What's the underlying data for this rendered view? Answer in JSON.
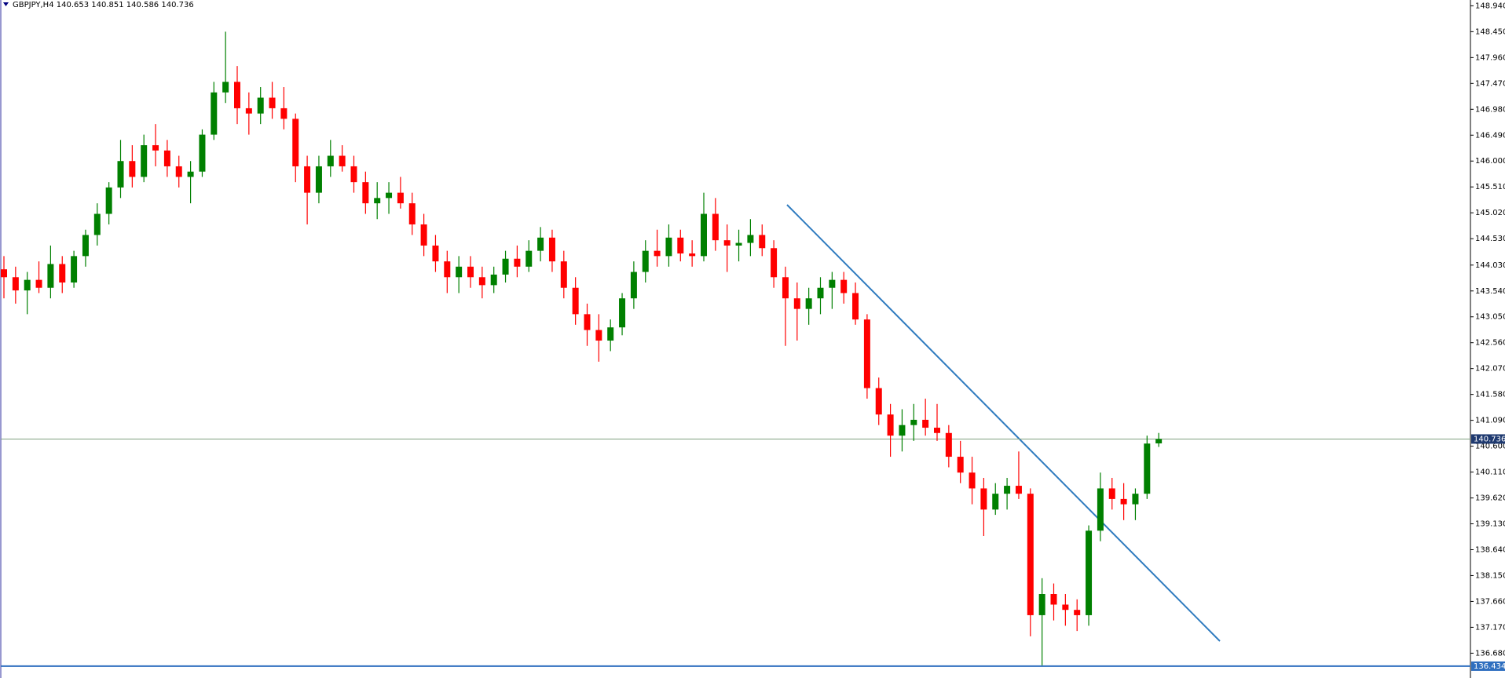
{
  "chart_data": {
    "type": "candlestick",
    "title": "GBPJPY,H4  140.653 140.851 140.586 140.736",
    "up_color": "#008000",
    "down_color": "#ff0000",
    "ylim": [
      136.21,
      149.05
    ],
    "yticks": [
      {
        "value": 148.94,
        "label": "148.940"
      },
      {
        "value": 148.45,
        "label": "148.450"
      },
      {
        "value": 147.96,
        "label": "147.960"
      },
      {
        "value": 147.47,
        "label": "147.470"
      },
      {
        "value": 146.98,
        "label": "146.980"
      },
      {
        "value": 146.49,
        "label": "146.490"
      },
      {
        "value": 146.0,
        "label": "146.000"
      },
      {
        "value": 145.51,
        "label": "145.510"
      },
      {
        "value": 145.02,
        "label": "145.020"
      },
      {
        "value": 144.53,
        "label": "144.530"
      },
      {
        "value": 144.03,
        "label": "144.030"
      },
      {
        "value": 143.54,
        "label": "143.540"
      },
      {
        "value": 143.05,
        "label": "143.050"
      },
      {
        "value": 142.56,
        "label": "142.560"
      },
      {
        "value": 142.07,
        "label": "142.070"
      },
      {
        "value": 141.58,
        "label": "141.580"
      },
      {
        "value": 141.09,
        "label": "141.090"
      },
      {
        "value": 140.6,
        "label": "140.600"
      },
      {
        "value": 140.11,
        "label": "140.110"
      },
      {
        "value": 139.62,
        "label": "139.620"
      },
      {
        "value": 139.13,
        "label": "139.130"
      },
      {
        "value": 138.64,
        "label": "138.640"
      },
      {
        "value": 138.15,
        "label": "138.150"
      },
      {
        "value": 137.66,
        "label": "137.660"
      },
      {
        "value": 137.17,
        "label": "137.170"
      },
      {
        "value": 136.68,
        "label": "136.680"
      }
    ],
    "price_line": 140.736,
    "level_line": 136.434,
    "candles": [
      [
        143.95,
        144.2,
        143.4,
        143.8
      ],
      [
        143.8,
        144.0,
        143.3,
        143.55
      ],
      [
        143.55,
        143.9,
        143.1,
        143.75
      ],
      [
        143.75,
        144.1,
        143.5,
        143.6
      ],
      [
        143.6,
        144.4,
        143.4,
        144.05
      ],
      [
        144.05,
        144.2,
        143.5,
        143.7
      ],
      [
        143.7,
        144.3,
        143.6,
        144.2
      ],
      [
        144.2,
        144.7,
        144.0,
        144.6
      ],
      [
        144.6,
        145.2,
        144.4,
        145.0
      ],
      [
        145.0,
        145.6,
        144.8,
        145.5
      ],
      [
        145.5,
        146.4,
        145.3,
        146.0
      ],
      [
        146.0,
        146.3,
        145.5,
        145.7
      ],
      [
        145.7,
        146.5,
        145.6,
        146.3
      ],
      [
        146.3,
        146.7,
        145.9,
        146.2
      ],
      [
        146.2,
        146.4,
        145.7,
        145.9
      ],
      [
        145.9,
        146.1,
        145.5,
        145.7
      ],
      [
        145.7,
        146.0,
        145.2,
        145.8
      ],
      [
        145.8,
        146.6,
        145.7,
        146.5
      ],
      [
        146.5,
        147.5,
        146.4,
        147.3
      ],
      [
        147.3,
        148.45,
        147.1,
        147.5
      ],
      [
        147.5,
        147.8,
        146.7,
        147.0
      ],
      [
        147.0,
        147.3,
        146.5,
        146.9
      ],
      [
        146.9,
        147.4,
        146.7,
        147.2
      ],
      [
        147.2,
        147.5,
        146.8,
        147.0
      ],
      [
        147.0,
        147.4,
        146.6,
        146.8
      ],
      [
        146.8,
        146.9,
        145.6,
        145.9
      ],
      [
        145.9,
        146.1,
        144.8,
        145.4
      ],
      [
        145.4,
        146.1,
        145.2,
        145.9
      ],
      [
        145.9,
        146.4,
        145.7,
        146.1
      ],
      [
        146.1,
        146.3,
        145.8,
        145.9
      ],
      [
        145.9,
        146.1,
        145.4,
        145.6
      ],
      [
        145.6,
        145.8,
        145.0,
        145.2
      ],
      [
        145.2,
        145.6,
        144.9,
        145.3
      ],
      [
        145.3,
        145.6,
        145.0,
        145.4
      ],
      [
        145.4,
        145.7,
        145.1,
        145.2
      ],
      [
        145.2,
        145.4,
        144.6,
        144.8
      ],
      [
        144.8,
        145.0,
        144.2,
        144.4
      ],
      [
        144.4,
        144.6,
        143.9,
        144.1
      ],
      [
        144.1,
        144.3,
        143.5,
        143.8
      ],
      [
        143.8,
        144.2,
        143.5,
        144.0
      ],
      [
        144.0,
        144.2,
        143.6,
        143.8
      ],
      [
        143.8,
        144.0,
        143.4,
        143.65
      ],
      [
        143.65,
        144.0,
        143.5,
        143.85
      ],
      [
        143.85,
        144.3,
        143.7,
        144.15
      ],
      [
        144.15,
        144.4,
        143.8,
        144.0
      ],
      [
        144.0,
        144.5,
        143.9,
        144.3
      ],
      [
        144.3,
        144.75,
        144.1,
        144.55
      ],
      [
        144.55,
        144.7,
        143.9,
        144.1
      ],
      [
        144.1,
        144.3,
        143.4,
        143.6
      ],
      [
        143.6,
        143.8,
        142.9,
        143.1
      ],
      [
        143.1,
        143.3,
        142.5,
        142.8
      ],
      [
        142.8,
        143.1,
        142.2,
        142.6
      ],
      [
        142.6,
        143.0,
        142.4,
        142.85
      ],
      [
        142.85,
        143.5,
        142.7,
        143.4
      ],
      [
        143.4,
        144.1,
        143.2,
        143.9
      ],
      [
        143.9,
        144.5,
        143.7,
        144.3
      ],
      [
        144.3,
        144.7,
        144.0,
        144.2
      ],
      [
        144.2,
        144.8,
        144.0,
        144.55
      ],
      [
        144.55,
        144.7,
        144.1,
        144.25
      ],
      [
        144.25,
        144.5,
        144.0,
        144.2
      ],
      [
        144.2,
        145.4,
        144.1,
        145.0
      ],
      [
        145.0,
        145.3,
        144.3,
        144.5
      ],
      [
        144.5,
        144.8,
        143.9,
        144.4
      ],
      [
        144.4,
        144.7,
        144.1,
        144.45
      ],
      [
        144.45,
        144.9,
        144.2,
        144.6
      ],
      [
        144.6,
        144.8,
        144.2,
        144.35
      ],
      [
        144.35,
        144.5,
        143.6,
        143.8
      ],
      [
        143.8,
        144.0,
        142.5,
        143.4
      ],
      [
        143.4,
        143.7,
        142.6,
        143.2
      ],
      [
        143.2,
        143.6,
        142.9,
        143.4
      ],
      [
        143.4,
        143.8,
        143.1,
        143.6
      ],
      [
        143.6,
        143.9,
        143.2,
        143.75
      ],
      [
        143.75,
        143.9,
        143.3,
        143.5
      ],
      [
        143.5,
        143.7,
        142.9,
        143.0
      ],
      [
        143.0,
        143.1,
        141.5,
        141.7
      ],
      [
        141.7,
        141.9,
        141.0,
        141.2
      ],
      [
        141.2,
        141.4,
        140.4,
        140.8
      ],
      [
        140.8,
        141.3,
        140.5,
        141.0
      ],
      [
        141.0,
        141.4,
        140.7,
        141.1
      ],
      [
        141.1,
        141.5,
        140.8,
        140.95
      ],
      [
        140.95,
        141.4,
        140.7,
        140.85
      ],
      [
        140.85,
        141.0,
        140.2,
        140.4
      ],
      [
        140.4,
        140.7,
        139.9,
        140.1
      ],
      [
        140.1,
        140.4,
        139.5,
        139.8
      ],
      [
        139.8,
        140.0,
        138.9,
        139.4
      ],
      [
        139.4,
        139.9,
        139.3,
        139.7
      ],
      [
        139.7,
        140.0,
        139.4,
        139.85
      ],
      [
        139.85,
        140.5,
        139.6,
        139.7
      ],
      [
        139.7,
        139.8,
        137.0,
        137.4
      ],
      [
        137.4,
        138.1,
        136.45,
        137.8
      ],
      [
        137.8,
        138.0,
        137.3,
        137.6
      ],
      [
        137.6,
        137.8,
        137.2,
        137.5
      ],
      [
        137.5,
        137.7,
        137.1,
        137.4
      ],
      [
        137.4,
        139.1,
        137.2,
        139.0
      ],
      [
        139.0,
        140.1,
        138.8,
        139.8
      ],
      [
        139.8,
        140.0,
        139.4,
        139.6
      ],
      [
        139.6,
        139.9,
        139.2,
        139.5
      ],
      [
        139.5,
        139.8,
        139.2,
        139.7
      ],
      [
        139.7,
        140.8,
        139.6,
        140.65
      ],
      [
        140.653,
        140.851,
        140.586,
        140.736
      ]
    ]
  }
}
